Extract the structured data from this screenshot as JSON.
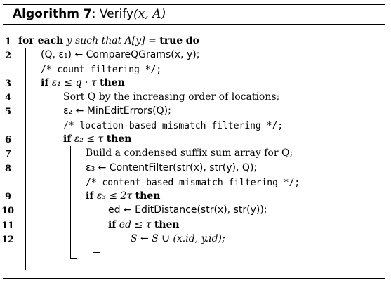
{
  "algorithm": {
    "label": "Algorithm 7",
    "name": "Verify",
    "params": "(x, A)"
  },
  "lines": [
    {
      "no": "1",
      "kw1": "for each",
      "text1": " y such that A[y] = ",
      "kw2": "true",
      "text2": " ",
      "kw3": "do"
    },
    {
      "no": "2",
      "text": "(Q, ε₁) ← CompareQGrams(x, y);"
    },
    {
      "no": "",
      "comment": "/* count filtering */;"
    },
    {
      "no": "3",
      "kw1": "if",
      "text1": " ε₁ ≤ q · τ ",
      "kw2": "then"
    },
    {
      "no": "4",
      "text": "Sort Q by the increasing order of locations;"
    },
    {
      "no": "5",
      "text": "ε₂ ← MinEditErrors(Q);"
    },
    {
      "no": "",
      "comment": "/* location-based mismatch filtering */;"
    },
    {
      "no": "6",
      "kw1": "if",
      "text1": " ε₂ ≤ τ ",
      "kw2": "then"
    },
    {
      "no": "7",
      "text": "Build a condensed suffix sum array for Q;"
    },
    {
      "no": "8",
      "text": "ε₃ ← ContentFilter(str(x), str(y), Q);"
    },
    {
      "no": "",
      "comment": "/* content-based mismatch filtering */;"
    },
    {
      "no": "9",
      "kw1": "if",
      "text1": " ε₃ ≤ 2τ ",
      "kw2": "then"
    },
    {
      "no": "10",
      "text": "ed ← EditDistance(str(x), str(y));"
    },
    {
      "no": "11",
      "kw1": "if",
      "text1": " ed ≤ τ ",
      "kw2": "then"
    },
    {
      "no": "12",
      "text": "S ← S ∪ (x.id, y.id);"
    }
  ]
}
